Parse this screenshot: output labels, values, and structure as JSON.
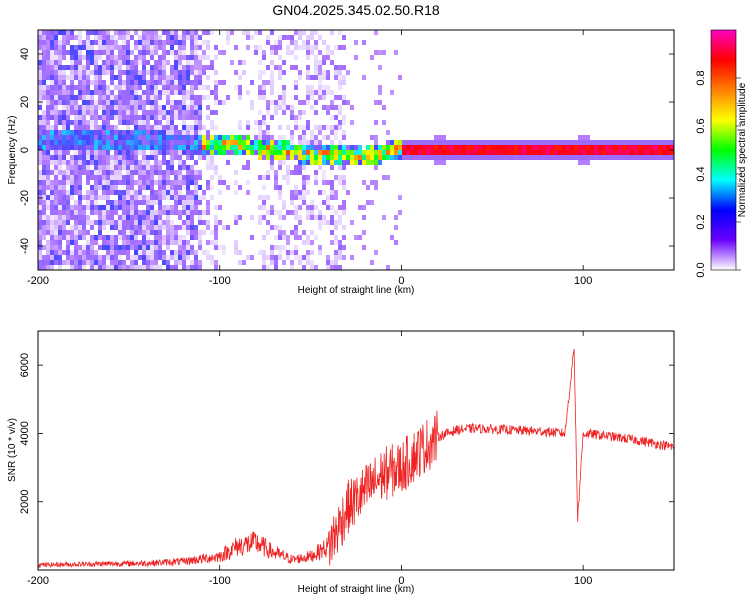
{
  "title": "GN04.2025.345.02.50.R18",
  "chart_data": [
    {
      "type": "heatmap",
      "xlabel": "Height of straight line (km)",
      "ylabel": "Frequency (Hz)",
      "xlim": [
        -200,
        150
      ],
      "ylim": [
        -50,
        50
      ],
      "xticks": [
        -200,
        -100,
        0,
        100
      ],
      "yticks": [
        -40,
        -20,
        0,
        20,
        40
      ],
      "colorbar": {
        "label": "Normalized spectral amplitude",
        "range": [
          0,
          1
        ],
        "ticks": [
          "0.0",
          "0.2",
          "0.4",
          "0.6",
          "0.8"
        ],
        "ticks_values": [
          0,
          0.2,
          0.4,
          0.6,
          0.8
        ],
        "colormap": [
          "#ffffff",
          "#6a00ff",
          "#0000ff",
          "#00ffff",
          "#00ff00",
          "#ffff00",
          "#ff8000",
          "#ff0000",
          "#ff00c0"
        ]
      },
      "ridge": {
        "x": [
          -200,
          -150,
          -120,
          -100,
          -80,
          -60,
          -40,
          -20,
          -10,
          0,
          50,
          100,
          150
        ],
        "y": [
          5,
          4,
          3,
          2,
          1,
          -1,
          -2,
          -3,
          -1,
          0,
          0,
          0,
          0
        ]
      }
    },
    {
      "type": "line",
      "xlabel": "Height of straight line (km)",
      "ylabel": "SNR (10 * v/v)",
      "xlim": [
        -200,
        150
      ],
      "ylim": [
        0,
        7000
      ],
      "xticks": [
        -200,
        -100,
        0,
        100
      ],
      "yticks": [
        2000,
        4000,
        6000
      ],
      "color": "#ee2222",
      "series": [
        {
          "x": [
            -200,
            -140,
            -120,
            -100,
            -90,
            -80,
            -70,
            -60,
            -50,
            -40,
            -35,
            -30,
            -20,
            -10,
            0,
            10,
            20,
            30,
            40,
            60,
            80,
            90,
            95,
            97,
            100,
            110,
            130,
            150
          ],
          "y": [
            150,
            200,
            250,
            400,
            700,
            800,
            500,
            300,
            400,
            700,
            1200,
            1800,
            2300,
            2800,
            3000,
            3500,
            3900,
            4100,
            4150,
            4100,
            4050,
            4000,
            6500,
            1500,
            4000,
            3950,
            3800,
            3600
          ]
        }
      ]
    }
  ]
}
